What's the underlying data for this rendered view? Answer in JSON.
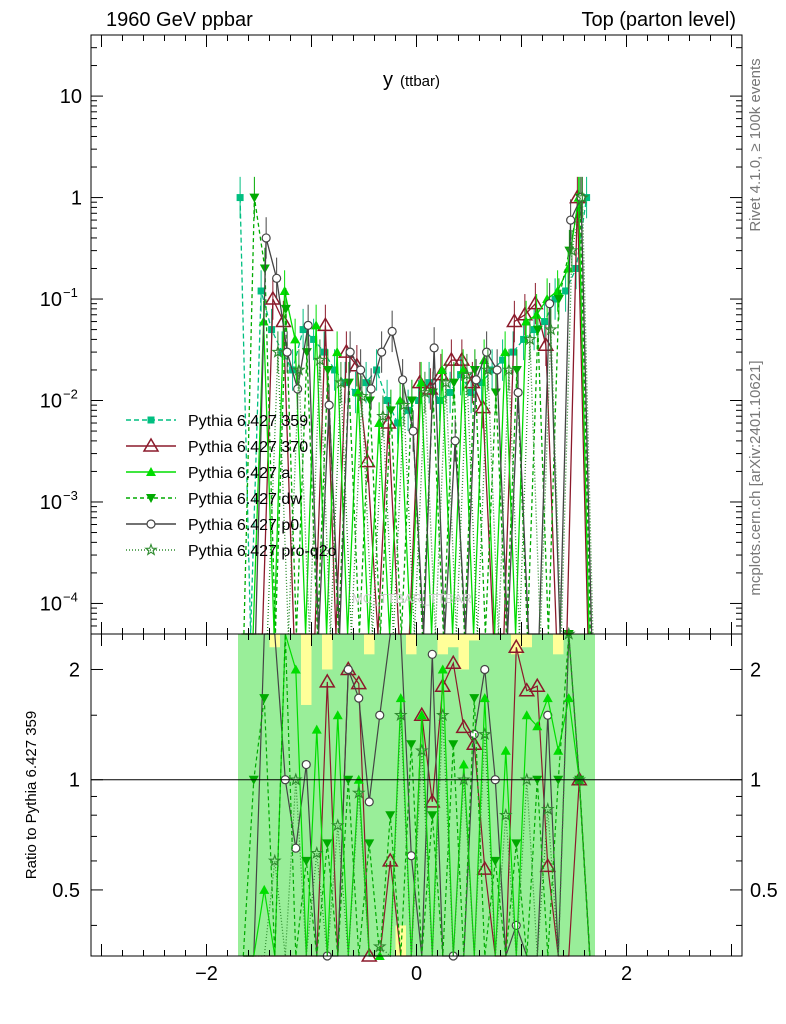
{
  "header": {
    "left": "1960 GeV ppbar",
    "right": "Top (parton level)"
  },
  "side_labels": {
    "rivet": "Rivet 4.1.0, ≥ 100k events",
    "mcplots": "mcplots.cern.ch [arXiv:2401.10621]"
  },
  "watermark": "MC_TTBAR_TTBAR",
  "chart_data": {
    "type": "line",
    "title": "y (ttbar)",
    "title_main": "y",
    "title_sub": "(ttbar)",
    "xlabel": "",
    "ylabel_top": "",
    "ylabel_ratio": "Ratio to Pythia 6.427 359",
    "xlim": [
      -3.1,
      3.1
    ],
    "ylim_top": [
      5e-05,
      40
    ],
    "yscale_top": "log",
    "ylim_ratio": [
      0.33,
      2.5
    ],
    "yscale_ratio": "log",
    "x_ticks": [
      -2,
      0,
      2
    ],
    "x_tick_labels": [
      "−2",
      "0",
      "2"
    ],
    "y_ticks_top": [
      {
        "value": 10,
        "base": "10",
        "exp": ""
      },
      {
        "value": 1,
        "base": "1",
        "exp": ""
      },
      {
        "value": 0.1,
        "base": "10",
        "exp": "−1"
      },
      {
        "value": 0.01,
        "base": "10",
        "exp": "−2"
      },
      {
        "value": 0.001,
        "base": "10",
        "exp": "−3"
      },
      {
        "value": 0.0001,
        "base": "10",
        "exp": "−4"
      }
    ],
    "y_ticks_ratio": [
      {
        "value": 2,
        "label": "2"
      },
      {
        "value": 1,
        "label": "1"
      },
      {
        "value": 0.5,
        "label": "0.5"
      }
    ],
    "legend_position": "middle-left",
    "x": [
      -1.65,
      -1.55,
      -1.45,
      -1.35,
      -1.25,
      -1.15,
      -1.05,
      -0.95,
      -0.85,
      -0.75,
      -0.65,
      -0.55,
      -0.45,
      -0.35,
      -0.25,
      -0.15,
      -0.05,
      0.05,
      0.15,
      0.25,
      0.35,
      0.45,
      0.55,
      0.65,
      0.75,
      0.85,
      0.95,
      1.05,
      1.15,
      1.25,
      1.35,
      1.45,
      1.55,
      1.65
    ],
    "series": [
      {
        "name": "Pythia 6.427 359",
        "color": "#00bf80",
        "dash": "5,3",
        "marker": "square",
        "values": [
          1.0,
          0,
          0.12,
          0.05,
          0.03,
          0.02,
          0.05,
          0.04,
          0.03,
          0.02,
          0.015,
          0.012,
          0.015,
          0.02,
          0.01,
          0.006,
          0.008,
          0.01,
          0.015,
          0.01,
          0.012,
          0.018,
          0.012,
          0.015,
          0.02,
          0.025,
          0.03,
          0.04,
          0.05,
          0.06,
          0.1,
          0.12,
          0.2,
          1.0
        ]
      },
      {
        "name": "Pythia 6.427 370",
        "color": "#8b1a2b",
        "dash": "",
        "marker": "triangle-open",
        "values": [
          0,
          0,
          0,
          0.1,
          0.06,
          0,
          0,
          0,
          0.055,
          0,
          0.03,
          0.022,
          0.0025,
          0,
          0.006,
          0,
          0,
          0.015,
          0.013,
          0.018,
          0.025,
          0.025,
          0.015,
          0.0085,
          0,
          0,
          0.06,
          0.07,
          0.09,
          0.035,
          0,
          0,
          1.0,
          0
        ]
      },
      {
        "name": "Pythia 6.427 a",
        "color": "#00dd00",
        "dash": "",
        "marker": "triangle-up",
        "values": [
          0,
          0,
          0.06,
          0,
          0.12,
          0.04,
          0,
          0.055,
          0,
          0.03,
          0,
          0.012,
          0,
          0.006,
          0,
          0.01,
          0,
          0.015,
          0,
          0.02,
          0,
          0.02,
          0,
          0.025,
          0,
          0.03,
          0,
          0.06,
          0.07,
          0.1,
          0.12,
          0.2,
          1.0,
          0
        ]
      },
      {
        "name": "Pythia 6.427 dw",
        "color": "#00aa00",
        "dash": "4,3",
        "marker": "triangle-down",
        "values": [
          0,
          1.0,
          0.2,
          0,
          0.08,
          0,
          0.03,
          0,
          0.02,
          0,
          0.015,
          0,
          0.01,
          0,
          0.008,
          0,
          0.01,
          0,
          0.012,
          0,
          0.015,
          0,
          0.02,
          0,
          0.012,
          0,
          0.02,
          0,
          0.05,
          0,
          0.1,
          0.3,
          1.0,
          0
        ]
      },
      {
        "name": "Pythia 6.427 p0",
        "color": "#444444",
        "dash": "",
        "marker": "circle-open",
        "values": [
          0,
          0,
          0.4,
          0.16,
          0.03,
          0.013,
          0.055,
          0,
          0.009,
          0,
          0.03,
          0.02,
          0.013,
          0.03,
          0.048,
          0.016,
          0.005,
          0,
          0.033,
          0,
          0.004,
          0,
          0.016,
          0.03,
          0.02,
          0,
          0.012,
          0,
          0,
          0.09,
          0,
          0.6,
          1.0,
          0
        ]
      },
      {
        "name": "Pythia 6.427 pro-q2o",
        "color": "#2e8b2e",
        "dash": "1,2",
        "marker": "star-open",
        "values": [
          0,
          0,
          0,
          0.03,
          0,
          0.02,
          0,
          0.025,
          0,
          0.015,
          0,
          0.011,
          0,
          0.007,
          0,
          0.009,
          0,
          0.012,
          0,
          0.015,
          0,
          0.018,
          0,
          0.02,
          0,
          0.02,
          0,
          0.04,
          0,
          0.05,
          0,
          0.3,
          1.0,
          0
        ]
      }
    ],
    "ratio_series": [
      {
        "name": "Pythia 6.427 370",
        "values": [
          0,
          0,
          0,
          0,
          0,
          0,
          0,
          0,
          1.85,
          0,
          2.0,
          1.83,
          0.17,
          0,
          0.6,
          0,
          0,
          1.5,
          0.87,
          1.8,
          2.08,
          1.39,
          1.25,
          0.57,
          0,
          0,
          2.3,
          1.75,
          1.8,
          0.58,
          0,
          0,
          1.0,
          0
        ]
      },
      {
        "name": "Pythia 6.427 p0",
        "values": [
          0,
          0,
          3.3,
          3.2,
          1.0,
          0.65,
          1.1,
          0,
          0.3,
          0,
          2.0,
          1.67,
          0.87,
          1.5,
          4.8,
          2.67,
          0.62,
          0,
          2.2,
          0,
          0.33,
          0,
          1.33,
          2.0,
          1.0,
          0,
          0.4,
          0,
          0,
          1.5,
          0,
          5.0,
          1.0,
          0
        ]
      },
      {
        "name": "Pythia 6.427 a",
        "values": [
          0,
          0,
          0.5,
          0,
          4.0,
          2.0,
          0,
          1.37,
          0,
          1.5,
          0,
          1.0,
          0,
          0.3,
          0,
          1.67,
          0,
          1.5,
          0,
          2.0,
          0,
          1.1,
          0,
          1.67,
          0,
          1.2,
          0,
          1.5,
          1.4,
          1.67,
          1.2,
          1.67,
          1.0,
          0
        ]
      },
      {
        "name": "Pythia 6.427 dw",
        "values": [
          0,
          1.0,
          1.67,
          0,
          2.67,
          0,
          0.6,
          0,
          0.67,
          0,
          1.0,
          0,
          0.67,
          0,
          0.8,
          0,
          1.25,
          0,
          0.8,
          0,
          1.25,
          0,
          1.67,
          0,
          0.6,
          0,
          0.67,
          0,
          1.0,
          0,
          1.0,
          2.5,
          1.0,
          0
        ]
      },
      {
        "name": "Pythia 6.427 pro-q2o",
        "values": [
          0,
          0,
          0,
          0.6,
          0,
          1.0,
          0,
          0.63,
          0,
          0.75,
          0,
          0.92,
          0,
          0.35,
          0,
          1.5,
          0,
          1.2,
          0,
          1.5,
          0,
          1.0,
          0,
          1.33,
          0,
          0.8,
          0,
          1.0,
          0,
          0.83,
          0,
          2.5,
          1.0,
          0
        ]
      }
    ],
    "ratio_bands": {
      "x_edges": [
        -1.7,
        -1.6,
        -1.5,
        -1.4,
        -1.3,
        -1.2,
        -1.1,
        -1.0,
        -0.9,
        -0.8,
        -0.7,
        -0.6,
        -0.5,
        -0.4,
        -0.3,
        -0.2,
        -0.1,
        0.0,
        0.1,
        0.2,
        0.3,
        0.4,
        0.5,
        0.6,
        0.7,
        0.8,
        0.9,
        1.0,
        1.1,
        1.2,
        1.3,
        1.4,
        1.5,
        1.6,
        1.7
      ],
      "yellow_up": [
        2.5,
        2.5,
        2.5,
        2.5,
        2.4,
        2.5,
        2.5,
        2.5,
        2.5,
        2.5,
        2.5,
        2.5,
        2.5,
        2.4,
        2.5,
        2.5,
        2.5,
        2.5,
        2.5,
        2.5,
        2.5,
        2.5,
        2.5,
        2.5,
        2.5,
        2.5,
        2.5,
        2.5,
        2.5,
        2.5,
        2.5,
        2.5,
        2.5,
        2.5
      ],
      "yellow_down": [
        0.33,
        0.33,
        0.33,
        0.33,
        0.33,
        0.33,
        0.33,
        0.33,
        0.33,
        0.33,
        0.33,
        0.33,
        0.33,
        0.33,
        0.33,
        0.33,
        0.33,
        0.33,
        0.33,
        0.33,
        0.33,
        0.33,
        0.33,
        0.33,
        0.33,
        0.33,
        0.33,
        0.33,
        0.33,
        0.33,
        0.33,
        0.33,
        0.33,
        0.33
      ],
      "green_up": [
        2.5,
        2.5,
        2.5,
        2.3,
        2.5,
        2.5,
        1.6,
        2.5,
        2.0,
        2.5,
        2.5,
        2.5,
        2.2,
        2.5,
        2.5,
        2.5,
        2.2,
        2.5,
        2.5,
        2.2,
        2.3,
        2.0,
        2.4,
        2.5,
        2.5,
        2.5,
        2.2,
        2.3,
        2.5,
        2.5,
        2.2,
        2.5,
        2.5,
        2.5
      ],
      "green_down": [
        0.33,
        0.33,
        0.33,
        0.33,
        0.33,
        0.33,
        0.33,
        0.33,
        0.33,
        0.33,
        0.33,
        0.33,
        0.33,
        0.33,
        0.33,
        0.4,
        0.33,
        0.33,
        0.33,
        0.33,
        0.33,
        0.33,
        0.33,
        0.33,
        0.33,
        0.33,
        0.33,
        0.33,
        0.33,
        0.33,
        0.33,
        0.33,
        0.33,
        0.33
      ]
    },
    "colors": {
      "yellow_band": "#ffff99",
      "green_band": "#99ee99",
      "frame": "#000000"
    }
  }
}
